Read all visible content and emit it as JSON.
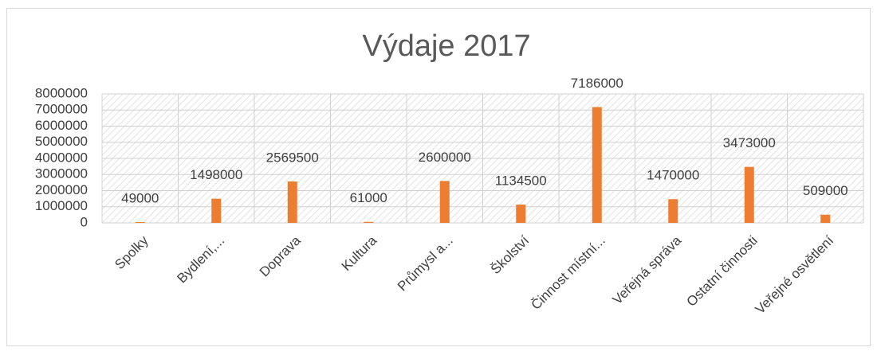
{
  "chart_data": {
    "type": "bar",
    "title": "Výdaje 2017",
    "categories": [
      "Spolky",
      "Bydlení,...",
      "Doprava",
      "Kultura",
      "Průmysl a...",
      "Školství",
      "Činnost místní...",
      "Veřejná správa",
      "Ostatní činnosti",
      "Veřejné osvětlení"
    ],
    "values": [
      49000,
      1498000,
      2569500,
      61000,
      2600000,
      1134500,
      7186000,
      1470000,
      3473000,
      509000
    ],
    "color": "#ed7d31",
    "ylim": [
      0,
      8000000
    ],
    "yticks": [
      0,
      1000000,
      2000000,
      3000000,
      4000000,
      5000000,
      6000000,
      7000000,
      8000000
    ],
    "grid": true
  }
}
